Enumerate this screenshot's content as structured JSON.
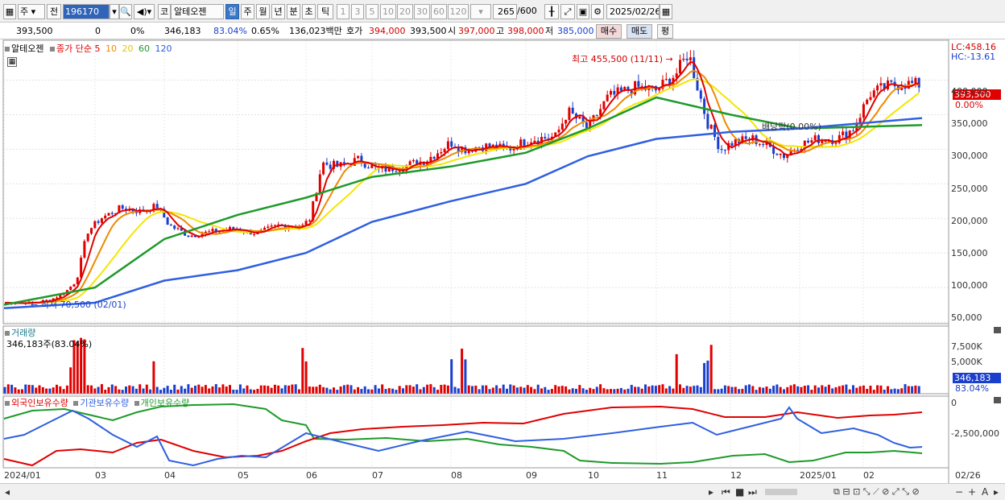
{
  "toolbar": {
    "market": "주",
    "market_prev": "전",
    "code": "196170",
    "name": "알테오젠",
    "prefix": "코",
    "periods": [
      "일",
      "주",
      "월",
      "년",
      "분",
      "초",
      "틱"
    ],
    "minutes": [
      "1",
      "3",
      "5",
      "10",
      "20",
      "30",
      "60",
      "120"
    ],
    "count": "265",
    "count_total": "/600",
    "date": "2025/02/26"
  },
  "info": {
    "price": "393,500",
    "change": "0",
    "change_pct": "0%",
    "volume": "346,183",
    "vol_ratio": "83.04%",
    "turnover": "0.65%",
    "amount": "136,023백만",
    "ask_label": "호가",
    "ask": "394,000",
    "bid": "393,500",
    "open_label": "시",
    "open": "397,000",
    "high_label": "고",
    "high": "398,000",
    "low_label": "저",
    "low": "385,000",
    "buy": "매수",
    "sell": "매도",
    "avg": "평"
  },
  "price_panel": {
    "name": "알테오젠",
    "indicator": "종가 단순",
    "ma": [
      "5",
      "10",
      "20",
      "60",
      "120"
    ],
    "lc": "LC:458.16",
    "hc": "HC:-13.61",
    "high_note": "최고 455,500 (11/11)",
    "low_note": "최저 70,500 (02/01)",
    "dividend_note": "배당락(0.00%)",
    "current_tag": "393,500",
    "current_pct": "0.00%",
    "y_labels": [
      "400,000",
      "350,000",
      "300,000",
      "250,000",
      "200,000",
      "150,000",
      "100,000",
      "50,000"
    ]
  },
  "volume_panel": {
    "title": "거래량",
    "value": "346,183주(83.04%)",
    "y_labels": [
      "7,500K",
      "5,000K"
    ],
    "tag": "346,183",
    "tag_pct": "83.04%"
  },
  "holding_panel": {
    "foreign": "외국인보유수량",
    "inst": "기관보유수량",
    "indiv": "개인보유수량",
    "y_labels": [
      "0",
      "-2,500,000"
    ]
  },
  "x_labels": [
    "2024/01",
    "03",
    "04",
    "05",
    "06",
    "07",
    "08",
    "09",
    "10",
    "11",
    "12",
    "2025/01",
    "02",
    "02/26"
  ],
  "colors": {
    "ma5": "#e00000",
    "ma10": "#ee8a00",
    "ma20": "#f5e600",
    "ma60": "#1e9a2a",
    "ma120": "#2f5fe0",
    "up": "#e00000",
    "down": "#1a3fcc"
  },
  "chart_data": {
    "type": "line",
    "title": "알테오젠",
    "x": [
      "2024/01",
      "03",
      "04",
      "05",
      "06",
      "07",
      "08",
      "09",
      "10",
      "11",
      "12",
      "2025/01",
      "02"
    ],
    "series": [
      {
        "name": "60",
        "values": [
          75000,
          100000,
          170000,
          205000,
          230000,
          260000,
          275000,
          295000,
          330000,
          375000,
          350000,
          330000,
          335000
        ]
      },
      {
        "name": "120",
        "values": [
          70000,
          78000,
          110000,
          125000,
          150000,
          195000,
          225000,
          250000,
          290000,
          315000,
          325000,
          330000,
          345000
        ]
      }
    ],
    "ylim": [
      50000,
      460000
    ]
  }
}
